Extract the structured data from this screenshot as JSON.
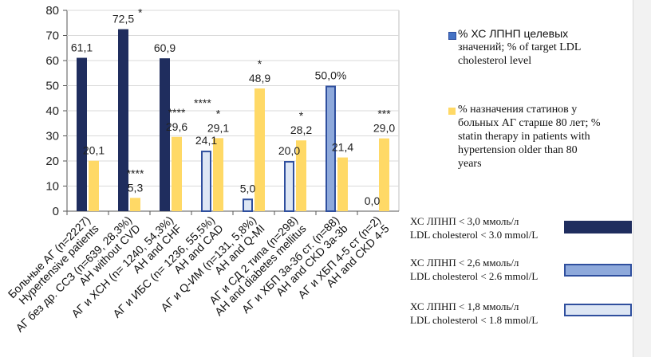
{
  "colors": {
    "ldl_30": "#1f2d5e",
    "ldl_26": "#8ea9db",
    "ldl_18": "#dde6f4",
    "ldl_border": "#2f4f9e",
    "statin": "#ffd966",
    "axis": "#555555"
  },
  "chart_data": {
    "type": "bar",
    "ylim": [
      0,
      80
    ],
    "yticks": [
      0,
      10,
      20,
      30,
      40,
      50,
      60,
      70,
      80
    ],
    "categories": [
      {
        "ru": "Больные АГ (n=2227)",
        "en": "Hypertensive patients"
      },
      {
        "ru": "АГ без др. ССЗ (n=639, 28,3%)",
        "en": "AH without CVD"
      },
      {
        "ru": "АГ и ХСН (n= 1240, 54,3%)",
        "en": "AH and CHF"
      },
      {
        "ru": "АГ и ИБС (n= 1236, 55,5%)",
        "en": "AH and CAD"
      },
      {
        "ru": "АГ и Q-ИМ (n=131, 5,8%)",
        "en": "AH and Q-MI"
      },
      {
        "ru": "АГ и СД 2 типа (n=298)",
        "en": "AH and diabetes mellitus"
      },
      {
        "ru": "АГ и ХБП 3а-3б ст. (n=88)",
        "en": "AH and CKD 3a-3b"
      },
      {
        "ru": "АГ и ХБП 4-5 ст (n=2)",
        "en": "AH and CKD 4-5"
      }
    ],
    "series": [
      {
        "name": "% ХС ЛПНП целевых значений; % of target LDL cholesterol level",
        "values": [
          61.1,
          72.5,
          60.9,
          24.1,
          5.0,
          20.0,
          50.0,
          0.0
        ],
        "labels": [
          "61,1",
          "72,5",
          "60,9",
          "24,1",
          "5,0",
          "20,0",
          "50,0%",
          "0,0"
        ],
        "markers": [
          "",
          "*",
          "",
          "",
          "",
          "",
          "",
          ""
        ],
        "target_level": [
          "3.0",
          "3.0",
          "3.0",
          "1.8",
          "1.8",
          "1.8",
          "2.6",
          "1.8"
        ]
      },
      {
        "name": "% назначения статинов у больных АГ старше 80 лет; % statin therapy in patients with hypertension older than 80 years",
        "values": [
          20.1,
          5.3,
          29.6,
          29.1,
          48.9,
          28.2,
          21.4,
          29.0
        ],
        "labels": [
          "20,1",
          "5,3",
          "29,6",
          "29,1",
          "48,9",
          "28,2",
          "21,4",
          "29,0"
        ],
        "markers": [
          "",
          "****",
          "****",
          "*",
          "*",
          "*",
          "",
          "***"
        ]
      }
    ],
    "extra_markers": [
      "****"
    ],
    "legend": [
      {
        "key": "ldl",
        "ru": "%  ХС ЛПНП целевых",
        "line2": "значений; % of target LDL",
        "line3": "cholesterol level"
      },
      {
        "key": "statin",
        "line1": "% назначения статинов у",
        "line2": "больных АГ старше 80 лет; %",
        "line3": "statin therapy in patients with",
        "line4": "hypertension older than 80",
        "line5": "years"
      }
    ],
    "thresholds": [
      {
        "ru": "ХС ЛПНП < 3,0 ммоль/л",
        "en": "LDL cholesterol < 3.0 mmol/L"
      },
      {
        "ru": "ХС ЛПНП < 2,6 ммоль/л",
        "en": "LDL cholesterol < 2.6 mmol/L"
      },
      {
        "ru": "ХС ЛПНП < 1,8 ммоль/л",
        "en": "LDL cholesterol < 1.8 mmol/L"
      }
    ]
  }
}
